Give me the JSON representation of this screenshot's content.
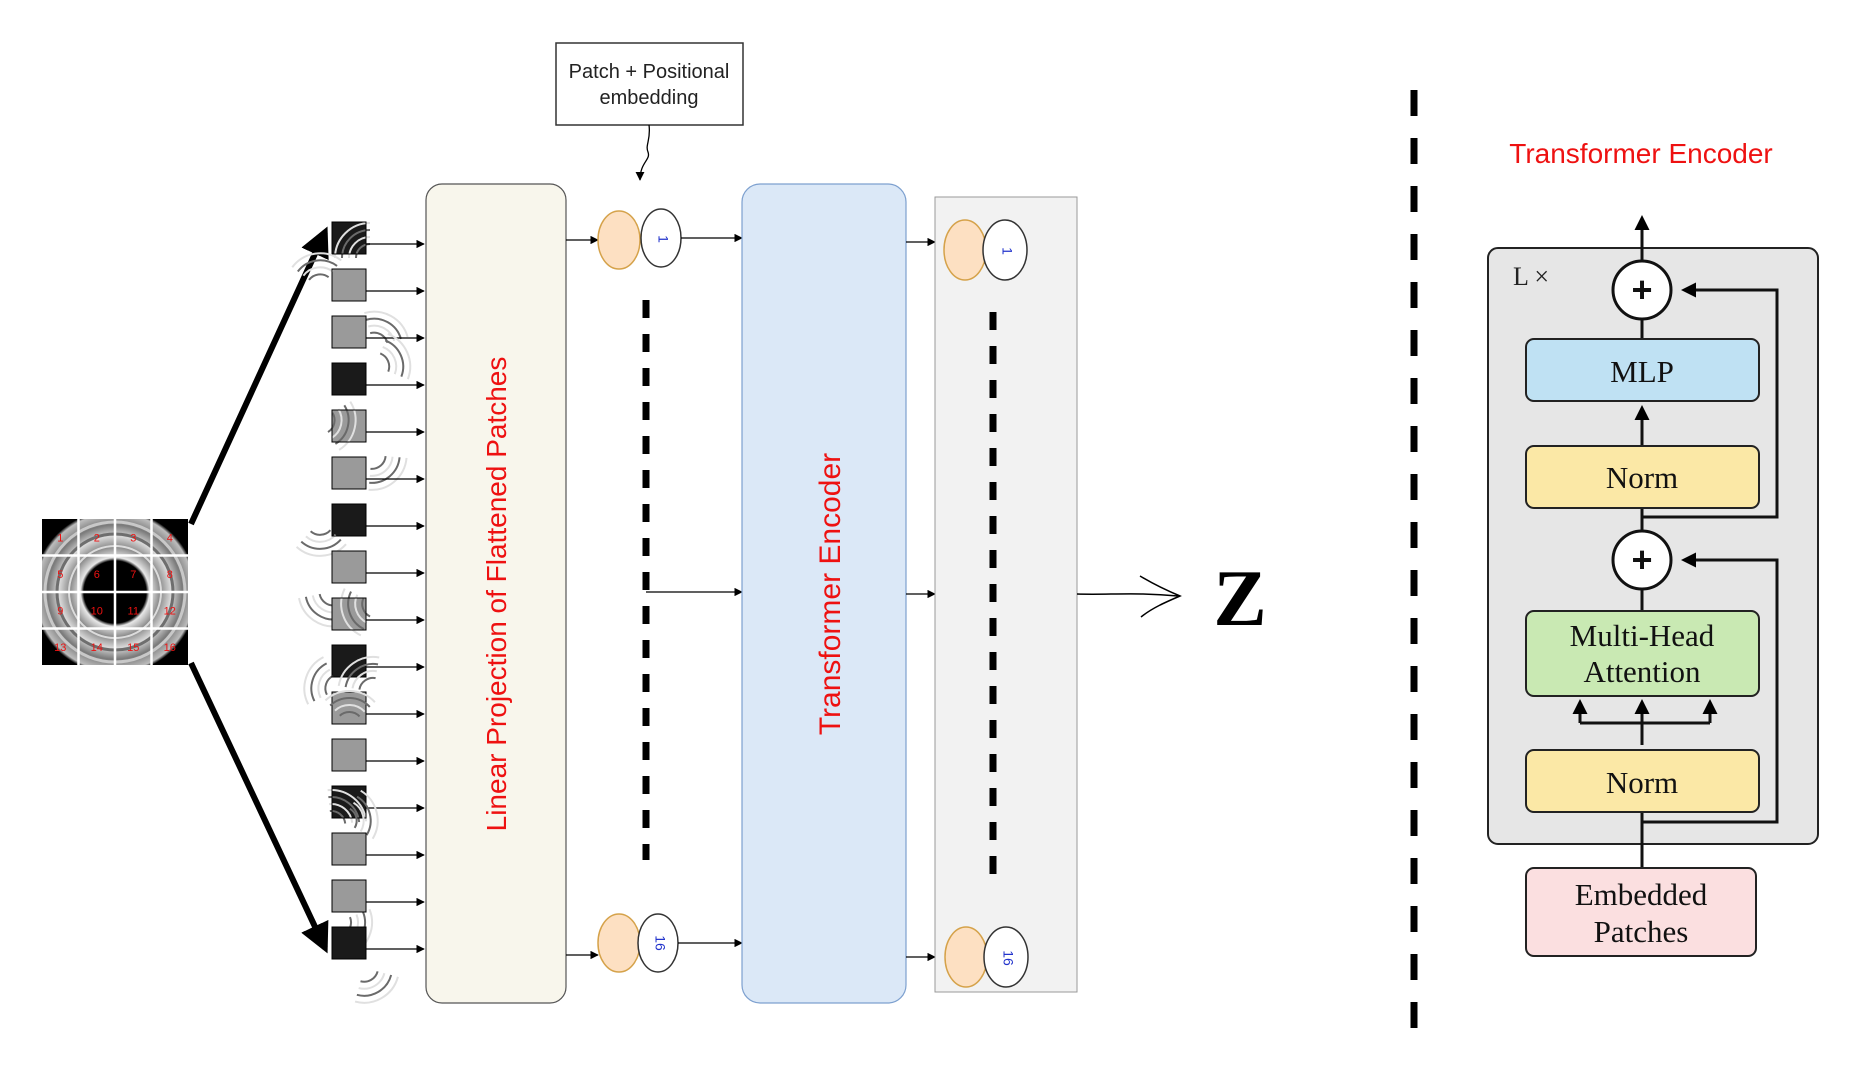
{
  "annotation": {
    "line1": "Patch + Positional",
    "line2": "embedding"
  },
  "linear_projection": {
    "label": "Linear Projection of Flattened Patches"
  },
  "encoder_block": {
    "label": "Transformer Encoder"
  },
  "tokens": {
    "first_index": "1",
    "last_index": "16"
  },
  "output": {
    "symbol": "Z"
  },
  "image_patch_numbers": [
    "1",
    "2",
    "3",
    "4",
    "5",
    "6",
    "7",
    "8",
    "9",
    "10",
    "11",
    "12",
    "13",
    "14",
    "15",
    "16"
  ],
  "detail": {
    "title": "Transformer Encoder",
    "repeat_label": "L ×",
    "mlp": "MLP",
    "norm_top": "Norm",
    "attention_line1": "Multi-Head",
    "attention_line2": "Attention",
    "norm_bottom": "Norm",
    "input_line1": "Embedded",
    "input_line2": "Patches",
    "plus": "+"
  },
  "colors": {
    "label_red": "#ee1111",
    "projection_fill": "#f8f6ec",
    "encoder_fill": "#dbe8f7",
    "token_fill": "#fde0c2",
    "output_panel_fill": "#f2f2f2",
    "mlp_fill": "#bfe1f3",
    "norm_fill": "#fbe8a6",
    "attention_fill": "#c9e9b3",
    "embed_fill": "#fbdfe0",
    "detail_panel_fill": "#e6e6e6"
  }
}
